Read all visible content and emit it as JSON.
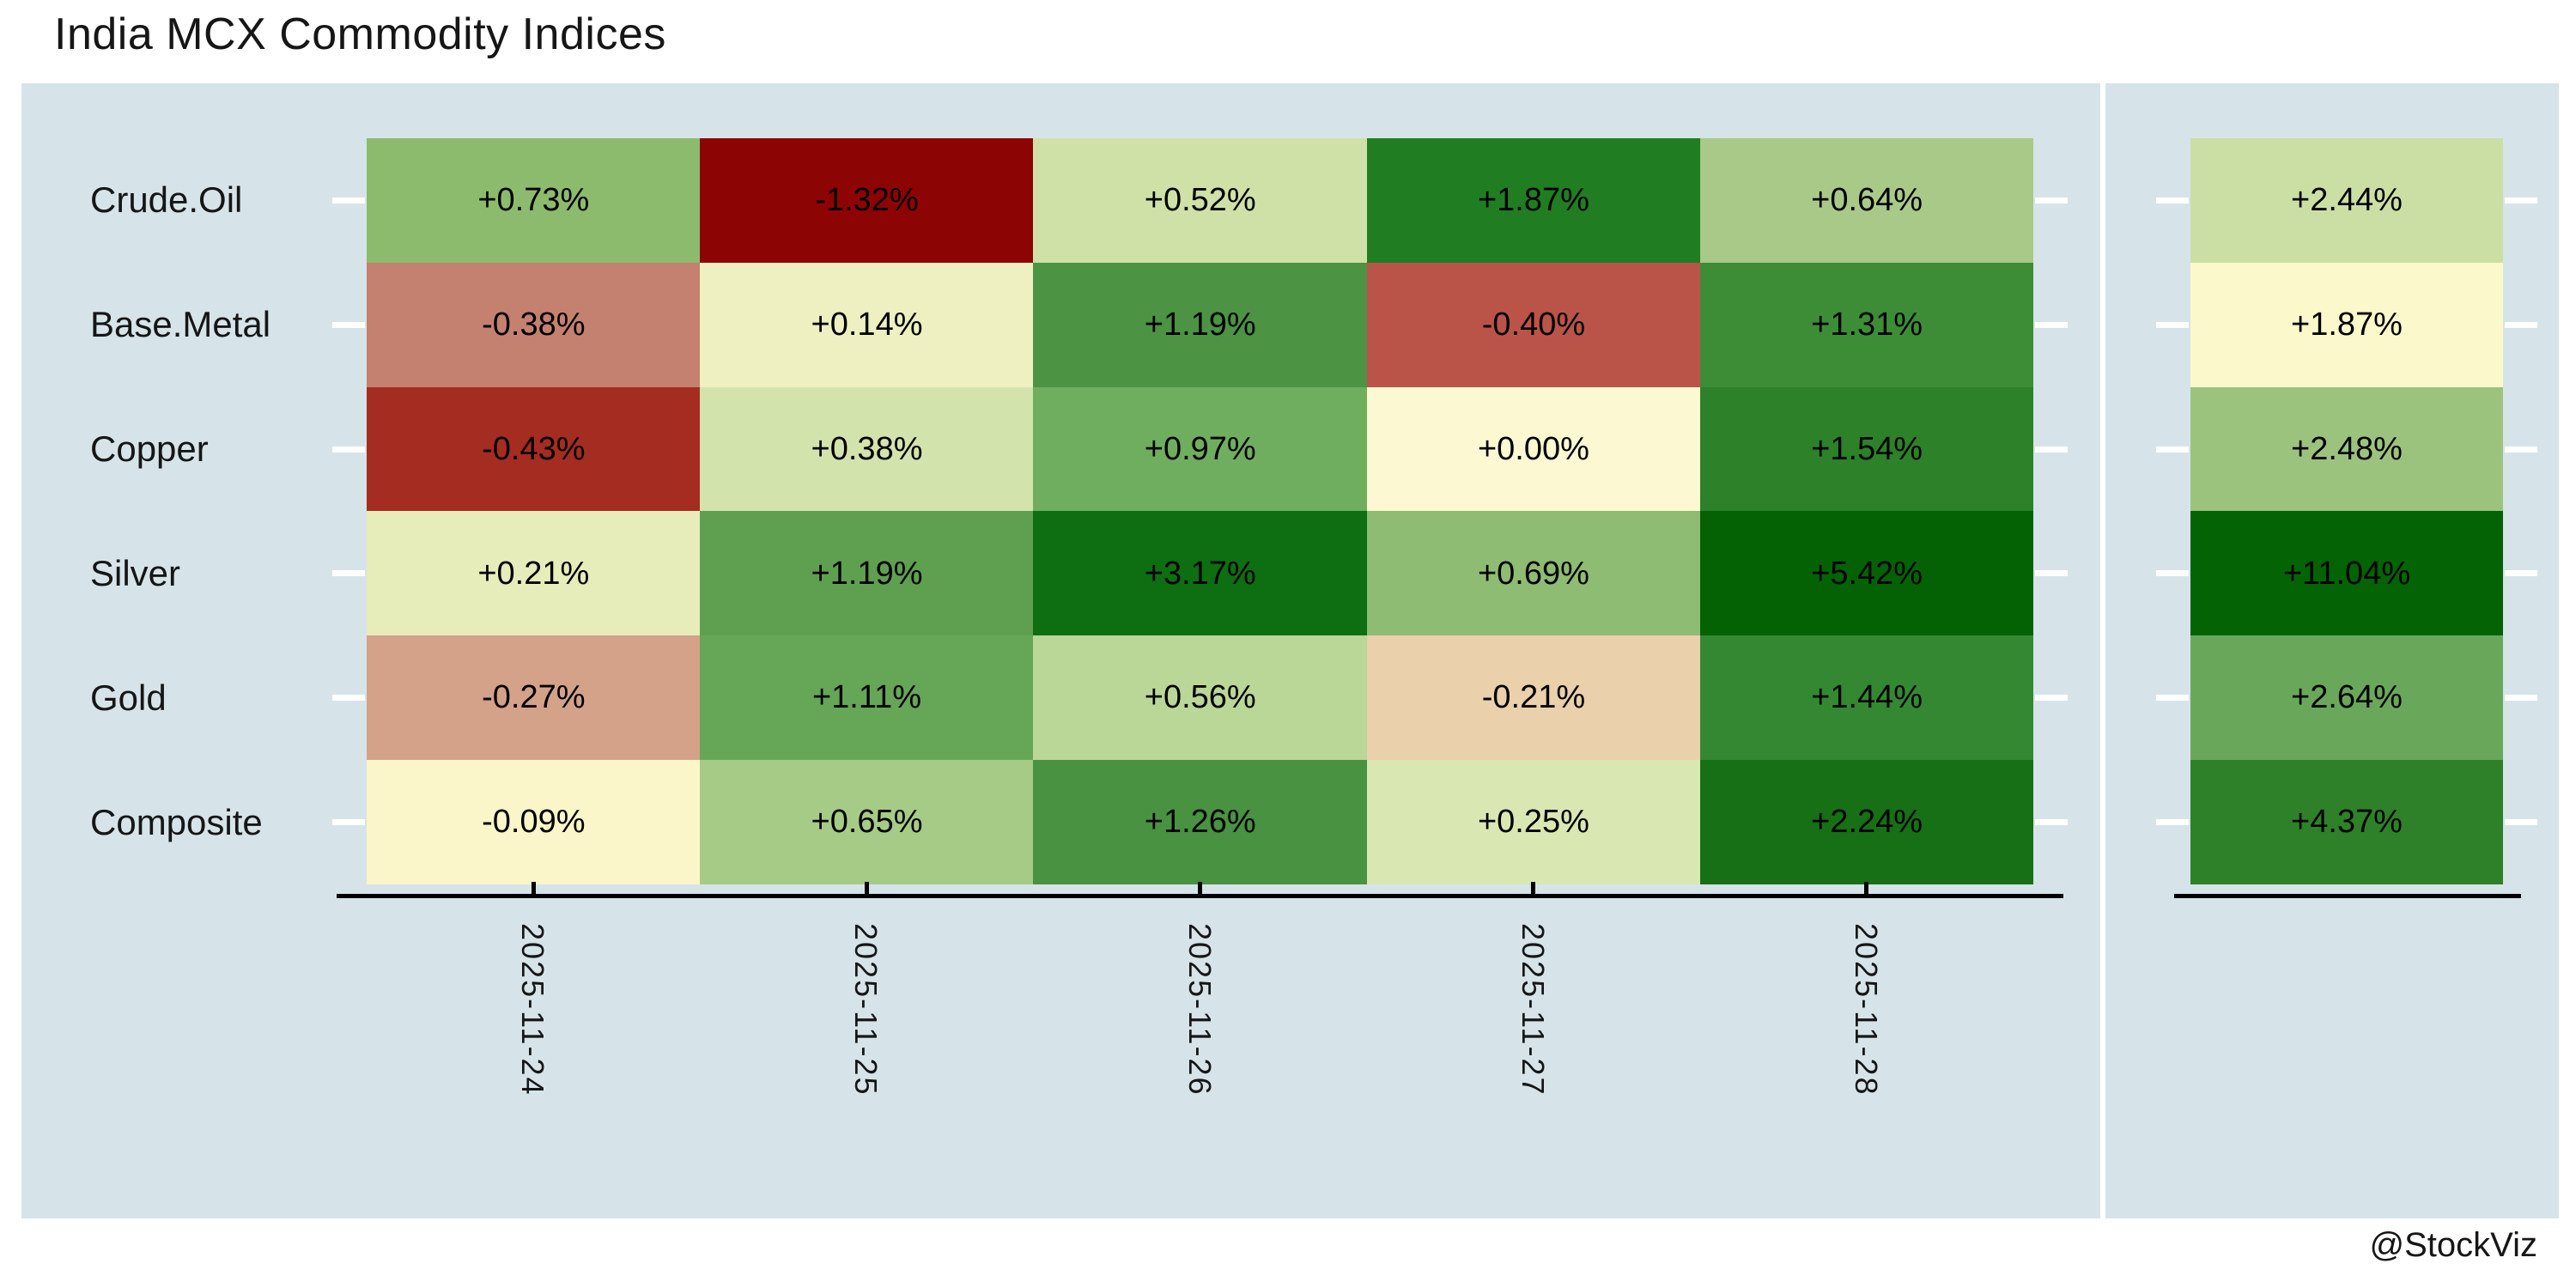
{
  "title": "India MCX Commodity Indices",
  "footer": "@StockViz",
  "colors": {
    "page_bg": "#ffffff",
    "panel_bg": "#d6e4ea",
    "axis_line": "#000000",
    "tick_mark": "#ffffff",
    "text": "#161616",
    "cell_text": "#000000"
  },
  "chart_data": {
    "type": "heatmap",
    "title": "India MCX Commodity Indices",
    "rows": [
      "Crude.Oil",
      "Base.Metal",
      "Copper",
      "Silver",
      "Gold",
      "Composite"
    ],
    "columns": [
      "2025-11-24",
      "2025-11-25",
      "2025-11-26",
      "2025-11-27",
      "2025-11-28"
    ],
    "values": [
      [
        0.73,
        -1.32,
        0.52,
        1.87,
        0.64
      ],
      [
        -0.38,
        0.14,
        1.19,
        -0.4,
        1.31
      ],
      [
        -0.43,
        0.38,
        0.97,
        0.0,
        1.54
      ],
      [
        0.21,
        1.19,
        3.17,
        0.69,
        5.42
      ],
      [
        -0.27,
        1.11,
        0.56,
        -0.21,
        1.44
      ],
      [
        -0.09,
        0.65,
        1.26,
        0.25,
        2.24
      ]
    ],
    "cell_labels": [
      [
        "+0.73%",
        "-1.32%",
        "+0.52%",
        "+1.87%",
        "+0.64%"
      ],
      [
        "-0.38%",
        "+0.14%",
        "+1.19%",
        "-0.40%",
        "+1.31%"
      ],
      [
        "-0.43%",
        "+0.38%",
        "+0.97%",
        "+0.00%",
        "+1.54%"
      ],
      [
        "+0.21%",
        "+1.19%",
        "+3.17%",
        "+0.69%",
        "+5.42%"
      ],
      [
        "-0.27%",
        "+1.11%",
        "+0.56%",
        "-0.21%",
        "+1.44%"
      ],
      [
        "-0.09%",
        "+0.65%",
        "+1.26%",
        "+0.25%",
        "+2.24%"
      ]
    ],
    "cell_colors": [
      [
        "#8cbb6d",
        "#8d0404",
        "#cfe1a6",
        "#217d21",
        "#a9c989"
      ],
      [
        "#c48170",
        "#eef0c2",
        "#4c9344",
        "#ba5448",
        "#3d8d37"
      ],
      [
        "#a52c20",
        "#d3e3ac",
        "#6fae5e",
        "#fcf9d2",
        "#2d8129"
      ],
      [
        "#e6ecba",
        "#5fa050",
        "#0e6e12",
        "#8dbc72",
        "#046205"
      ],
      [
        "#d3a289",
        "#66a657",
        "#bad797",
        "#ead0ab",
        "#358832"
      ],
      [
        "#faf6c9",
        "#a6cb87",
        "#489242",
        "#d9e7b3",
        "#176f16"
      ]
    ],
    "summary_column": {
      "values": [
        2.44,
        1.87,
        2.48,
        11.04,
        2.64,
        4.37
      ],
      "labels": [
        "+2.44%",
        "+1.87%",
        "+2.48%",
        "+11.04%",
        "+2.64%",
        "+4.37%"
      ],
      "colors": [
        "#cbdfa4",
        "#fbf8cb",
        "#9cc37e",
        "#046304",
        "#69a85b",
        "#2e8128"
      ]
    },
    "legend": "none",
    "colormap": "red-yellow-green diverging"
  }
}
